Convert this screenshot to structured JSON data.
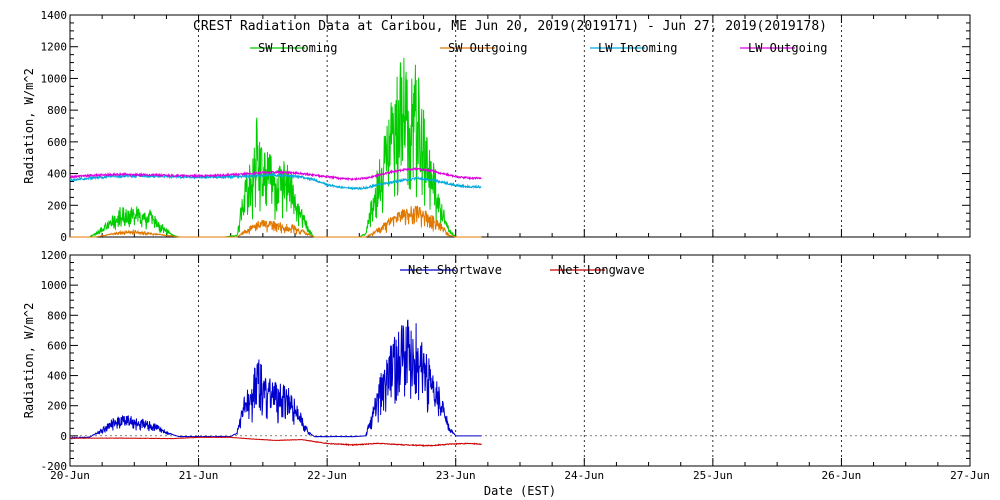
{
  "page": {
    "xlabel": "Date (EST)"
  },
  "chart_data": [
    {
      "type": "line",
      "title": "CREST Radiation Data at Caribou, ME   Jun 20, 2019(2019171) - Jun 27, 2019(2019178)",
      "ylabel": "Radiation, W/m^2",
      "xlabel": "",
      "xlim": [
        0,
        7
      ],
      "ylim": [
        0,
        1400
      ],
      "yticks": [
        "0",
        "200",
        "400",
        "600",
        "800",
        "1000",
        "1200",
        "1400"
      ],
      "x_tick_labels": [],
      "grid": true,
      "legend": "top, inline",
      "series": [
        {
          "name": "SW Incoming",
          "color": "#00cc00",
          "noise": 0.35,
          "points": [
            [
              0.0,
              0
            ],
            [
              0.15,
              0
            ],
            [
              0.2,
              20
            ],
            [
              0.3,
              80
            ],
            [
              0.38,
              150
            ],
            [
              0.45,
              130
            ],
            [
              0.5,
              160
            ],
            [
              0.55,
              120
            ],
            [
              0.62,
              130
            ],
            [
              0.68,
              90
            ],
            [
              0.75,
              40
            ],
            [
              0.8,
              10
            ],
            [
              0.85,
              0
            ],
            [
              1.1,
              0
            ],
            [
              1.2,
              0
            ],
            [
              1.3,
              10
            ],
            [
              1.35,
              250
            ],
            [
              1.42,
              400
            ],
            [
              1.46,
              600
            ],
            [
              1.5,
              380
            ],
            [
              1.55,
              450
            ],
            [
              1.6,
              300
            ],
            [
              1.68,
              380
            ],
            [
              1.75,
              250
            ],
            [
              1.8,
              150
            ],
            [
              1.86,
              40
            ],
            [
              1.9,
              0
            ],
            [
              2.25,
              0
            ],
            [
              2.3,
              20
            ],
            [
              2.35,
              200
            ],
            [
              2.42,
              400
            ],
            [
              2.5,
              700
            ],
            [
              2.55,
              800
            ],
            [
              2.6,
              860
            ],
            [
              2.65,
              780
            ],
            [
              2.7,
              850
            ],
            [
              2.75,
              600
            ],
            [
              2.8,
              420
            ],
            [
              2.85,
              300
            ],
            [
              2.9,
              150
            ],
            [
              2.95,
              40
            ],
            [
              3.0,
              0
            ],
            [
              3.2,
              0
            ]
          ]
        },
        {
          "name": "SW Outgoing",
          "color": "#e07800",
          "noise": 0.25,
          "points": [
            [
              0.0,
              0
            ],
            [
              0.2,
              0
            ],
            [
              0.3,
              15
            ],
            [
              0.4,
              30
            ],
            [
              0.5,
              35
            ],
            [
              0.6,
              25
            ],
            [
              0.7,
              15
            ],
            [
              0.8,
              5
            ],
            [
              0.85,
              0
            ],
            [
              1.3,
              0
            ],
            [
              1.35,
              30
            ],
            [
              1.45,
              80
            ],
            [
              1.55,
              90
            ],
            [
              1.65,
              70
            ],
            [
              1.75,
              60
            ],
            [
              1.85,
              20
            ],
            [
              1.9,
              0
            ],
            [
              2.3,
              0
            ],
            [
              2.35,
              20
            ],
            [
              2.45,
              80
            ],
            [
              2.55,
              130
            ],
            [
              2.6,
              150
            ],
            [
              2.7,
              160
            ],
            [
              2.8,
              120
            ],
            [
              2.9,
              60
            ],
            [
              2.95,
              10
            ],
            [
              3.0,
              0
            ],
            [
              3.2,
              0
            ]
          ]
        },
        {
          "name": "LW Incoming",
          "color": "#00aadd",
          "noise": 0.02,
          "points": [
            [
              0.0,
              360
            ],
            [
              0.2,
              375
            ],
            [
              0.4,
              385
            ],
            [
              0.6,
              385
            ],
            [
              0.8,
              380
            ],
            [
              1.0,
              378
            ],
            [
              1.2,
              378
            ],
            [
              1.4,
              385
            ],
            [
              1.6,
              390
            ],
            [
              1.8,
              380
            ],
            [
              1.9,
              360
            ],
            [
              2.0,
              330
            ],
            [
              2.1,
              315
            ],
            [
              2.2,
              305
            ],
            [
              2.3,
              310
            ],
            [
              2.4,
              330
            ],
            [
              2.5,
              345
            ],
            [
              2.6,
              360
            ],
            [
              2.7,
              370
            ],
            [
              2.8,
              360
            ],
            [
              2.9,
              345
            ],
            [
              3.0,
              325
            ],
            [
              3.1,
              318
            ],
            [
              3.2,
              315
            ]
          ]
        },
        {
          "name": "LW Outgoing",
          "color": "#dd00dd",
          "noise": 0.015,
          "points": [
            [
              0.0,
              380
            ],
            [
              0.2,
              390
            ],
            [
              0.4,
              395
            ],
            [
              0.6,
              392
            ],
            [
              0.8,
              388
            ],
            [
              1.0,
              385
            ],
            [
              1.2,
              390
            ],
            [
              1.4,
              400
            ],
            [
              1.6,
              410
            ],
            [
              1.8,
              400
            ],
            [
              2.0,
              380
            ],
            [
              2.1,
              370
            ],
            [
              2.2,
              365
            ],
            [
              2.3,
              370
            ],
            [
              2.4,
              390
            ],
            [
              2.5,
              410
            ],
            [
              2.6,
              425
            ],
            [
              2.7,
              430
            ],
            [
              2.8,
              420
            ],
            [
              2.9,
              400
            ],
            [
              3.0,
              380
            ],
            [
              3.1,
              372
            ],
            [
              3.2,
              370
            ]
          ]
        }
      ]
    },
    {
      "type": "line",
      "title": "",
      "ylabel": "Radiation, W/m^2",
      "xlabel": "Date (EST)",
      "xlim": [
        0,
        7
      ],
      "ylim": [
        -200,
        1200
      ],
      "yticks": [
        "-200",
        "0",
        "200",
        "400",
        "600",
        "800",
        "1000",
        "1200"
      ],
      "x_tick_labels": [
        "20-Jun",
        "21-Jun",
        "22-Jun",
        "23-Jun",
        "24-Jun",
        "25-Jun",
        "26-Jun",
        "27-Jun"
      ],
      "grid": true,
      "legend": "top, inline",
      "series": [
        {
          "name": "Net Shortwave",
          "color": "#0000cc",
          "noise": 0.3,
          "points": [
            [
              0.0,
              -15
            ],
            [
              0.15,
              -10
            ],
            [
              0.25,
              40
            ],
            [
              0.35,
              100
            ],
            [
              0.45,
              110
            ],
            [
              0.55,
              90
            ],
            [
              0.65,
              70
            ],
            [
              0.75,
              20
            ],
            [
              0.85,
              -5
            ],
            [
              1.0,
              -5
            ],
            [
              1.25,
              -5
            ],
            [
              1.3,
              20
            ],
            [
              1.35,
              200
            ],
            [
              1.42,
              300
            ],
            [
              1.46,
              480
            ],
            [
              1.5,
              320
            ],
            [
              1.6,
              280
            ],
            [
              1.7,
              250
            ],
            [
              1.78,
              150
            ],
            [
              1.85,
              30
            ],
            [
              1.9,
              -5
            ],
            [
              2.2,
              -5
            ],
            [
              2.3,
              0
            ],
            [
              2.35,
              150
            ],
            [
              2.45,
              400
            ],
            [
              2.55,
              560
            ],
            [
              2.6,
              620
            ],
            [
              2.65,
              580
            ],
            [
              2.7,
              600
            ],
            [
              2.75,
              500
            ],
            [
              2.8,
              380
            ],
            [
              2.88,
              250
            ],
            [
              2.95,
              50
            ],
            [
              3.0,
              0
            ],
            [
              3.2,
              0
            ]
          ]
        },
        {
          "name": "Net Longwave",
          "color": "#cc0000",
          "noise": 0.05,
          "points": [
            [
              0.0,
              -15
            ],
            [
              0.4,
              -15
            ],
            [
              0.8,
              -18
            ],
            [
              1.0,
              -10
            ],
            [
              1.25,
              -10
            ],
            [
              1.4,
              -20
            ],
            [
              1.6,
              -30
            ],
            [
              1.8,
              -25
            ],
            [
              2.0,
              -50
            ],
            [
              2.2,
              -60
            ],
            [
              2.4,
              -50
            ],
            [
              2.6,
              -60
            ],
            [
              2.8,
              -65
            ],
            [
              2.95,
              -55
            ],
            [
              3.1,
              -50
            ],
            [
              3.2,
              -55
            ]
          ]
        }
      ]
    }
  ]
}
